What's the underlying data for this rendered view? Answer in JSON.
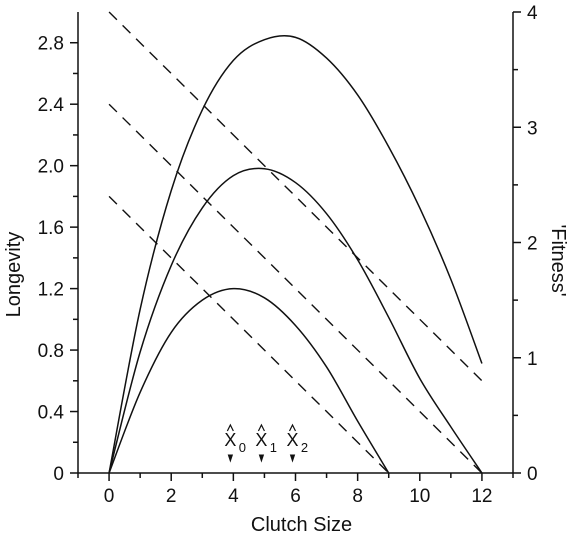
{
  "chart_data": {
    "type": "line",
    "xlabel": "Clutch Size",
    "ylabel_left": "Longevity",
    "ylabel_right": "'Fitness'",
    "xlim": [
      -1,
      13
    ],
    "ylim_left": [
      0,
      3.0
    ],
    "ylim_right": [
      0,
      4
    ],
    "x_ticks": [
      0,
      2,
      4,
      6,
      8,
      10,
      12
    ],
    "y_left_ticks": [
      "0",
      "0.4",
      "0.8",
      "1.2",
      "1.6",
      "2.0",
      "2.4",
      "2.8"
    ],
    "y_left_tick_values": [
      0,
      0.4,
      0.8,
      1.2,
      1.6,
      2.0,
      2.4,
      2.8
    ],
    "y_right_ticks": [
      "0",
      "1",
      "2",
      "3",
      "4"
    ],
    "y_right_tick_values": [
      0,
      1,
      2,
      3,
      4
    ],
    "grid": false,
    "longevity_lines": [
      {
        "x": [
          0,
          12
        ],
        "y": [
          3.0,
          0.6
        ]
      },
      {
        "x": [
          0,
          12
        ],
        "y": [
          2.4,
          0.0
        ]
      },
      {
        "x": [
          0,
          9
        ],
        "y": [
          1.8,
          0.0
        ]
      }
    ],
    "fitness_curves": [
      {
        "x": [
          0,
          1,
          2,
          3,
          4,
          5,
          6,
          7,
          8,
          9,
          10,
          11,
          12
        ],
        "y": [
          0,
          1.42,
          2.45,
          3.15,
          3.58,
          3.76,
          3.78,
          3.6,
          3.28,
          2.83,
          2.3,
          1.68,
          0.95
        ]
      },
      {
        "x": [
          0,
          1,
          2,
          3,
          4,
          5,
          6,
          7,
          8,
          9,
          10,
          11,
          12
        ],
        "y": [
          0,
          1.05,
          1.8,
          2.3,
          2.58,
          2.64,
          2.52,
          2.25,
          1.85,
          1.35,
          0.82,
          0.4,
          0
        ]
      },
      {
        "x": [
          0,
          1,
          2,
          3,
          4,
          5,
          6,
          7,
          8,
          9
        ],
        "y": [
          0,
          0.7,
          1.22,
          1.5,
          1.6,
          1.52,
          1.28,
          0.92,
          0.45,
          0
        ]
      }
    ],
    "markers": [
      {
        "x": 4,
        "label": "X",
        "sub": "0"
      },
      {
        "x": 5,
        "label": "X",
        "sub": "1"
      },
      {
        "x": 6,
        "label": "X",
        "sub": "2"
      }
    ]
  }
}
